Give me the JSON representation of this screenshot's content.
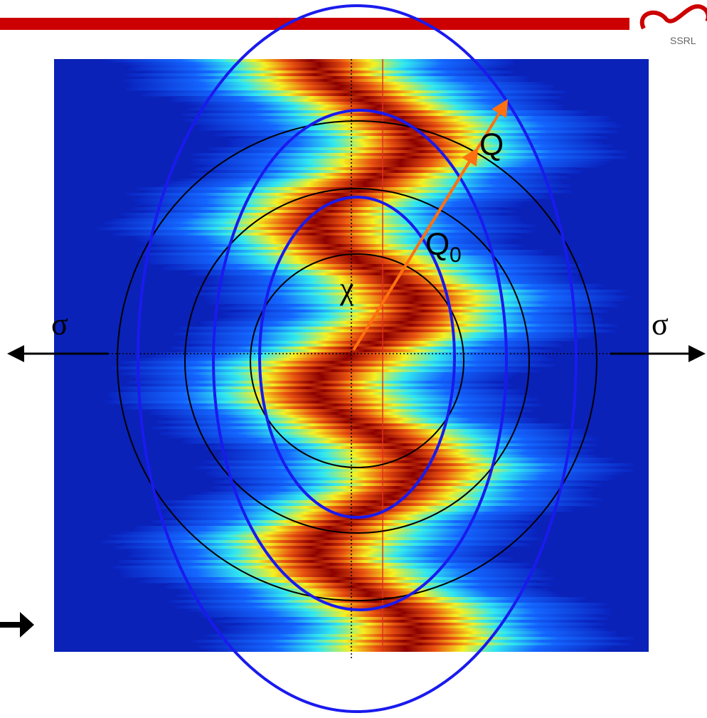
{
  "labels": {
    "q": "Q",
    "q0": "Q",
    "q0_subscript": "0",
    "chi": "χ",
    "sigma_left": "σ",
    "sigma_right": "σ",
    "logo": "SSRL"
  }
}
